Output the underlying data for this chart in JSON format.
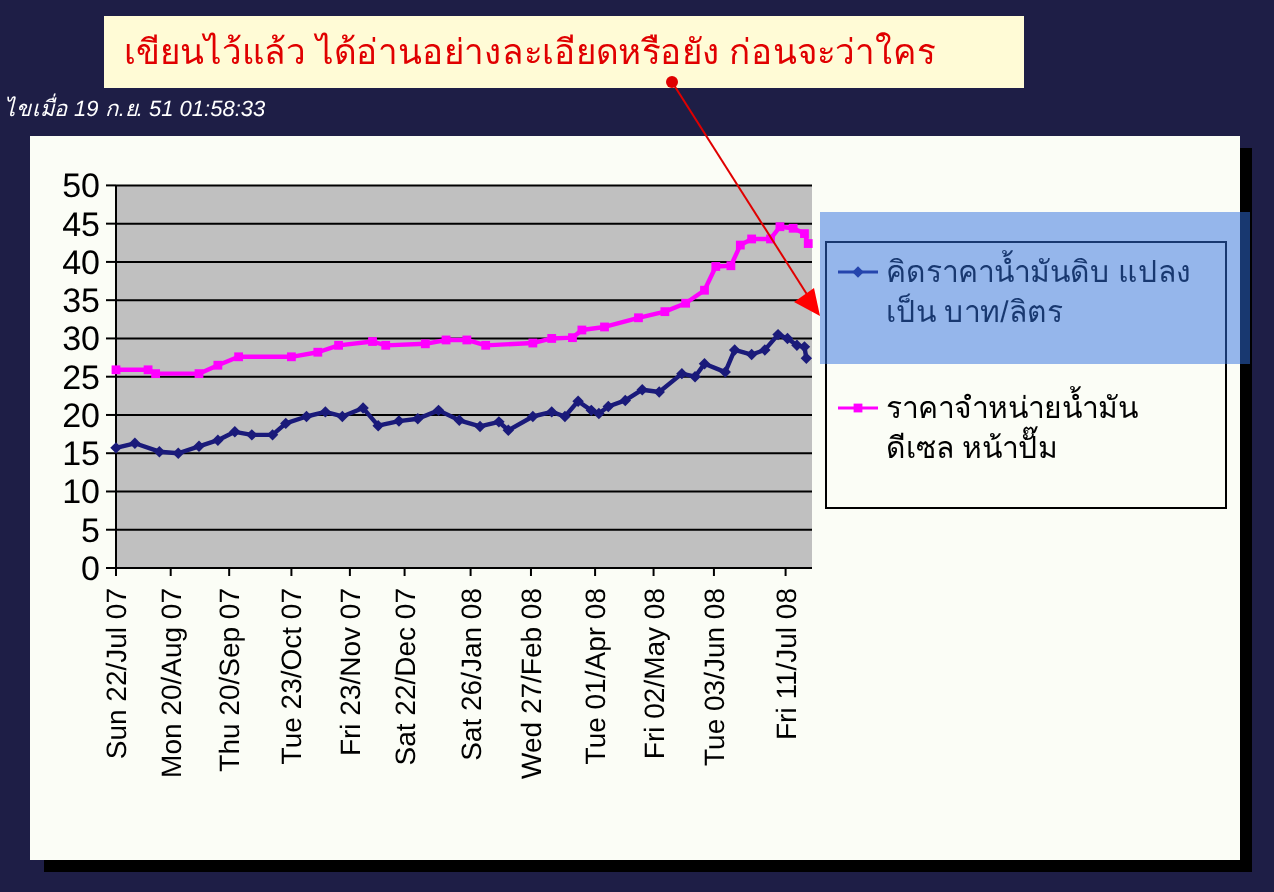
{
  "chart_data": {
    "type": "line",
    "annotations": [
      "เขียนไว้แล้ว ได้อ่านอย่างละเอียดหรือยัง ก่อนจะว่าใคร",
      "ไขเมื่อ 19 ก.ย. 51 01:58:33"
    ],
    "xlim": [
      "2007-07-22",
      "2008-07-25"
    ],
    "xticks": [
      {
        "value": "2007-07-22",
        "label": "Sun 22/Jul 07"
      },
      {
        "value": "2007-08-20",
        "label": "Mon 20/Aug 07"
      },
      {
        "value": "2007-09-20",
        "label": "Thu 20/Sep 07"
      },
      {
        "value": "2007-10-23",
        "label": "Tue 23/Oct 07"
      },
      {
        "value": "2007-11-23",
        "label": "Fri 23/Nov 07"
      },
      {
        "value": "2007-12-22",
        "label": "Sat 22/Dec 07"
      },
      {
        "value": "2008-01-26",
        "label": "Sat 26/Jan 08"
      },
      {
        "value": "2008-02-27",
        "label": "Wed 27/Feb 08"
      },
      {
        "value": "2008-04-01",
        "label": "Tue 01/Apr 08"
      },
      {
        "value": "2008-05-02",
        "label": "Fri 02/May 08"
      },
      {
        "value": "2008-06-03",
        "label": "Tue 03/Jun 08"
      },
      {
        "value": "2008-07-11",
        "label": "Fri 11/Jul 08"
      }
    ],
    "ylim": [
      0,
      50
    ],
    "yticks": [
      0,
      5,
      10,
      15,
      20,
      25,
      30,
      35,
      40,
      45,
      50
    ],
    "grid": "y",
    "legend": "right",
    "series": [
      {
        "name": "คิดราคาน้ำมันดิบ แปลง เป็น บาท/ลิตร",
        "color": "#1a1a7a",
        "marker": "diamond",
        "x": [
          "2007-07-22",
          "2007-08-01",
          "2007-08-14",
          "2007-08-24",
          "2007-09-04",
          "2007-09-14",
          "2007-09-23",
          "2007-10-02",
          "2007-10-13",
          "2007-10-20",
          "2007-10-31",
          "2007-11-10",
          "2007-11-19",
          "2007-11-30",
          "2007-12-08",
          "2007-12-19",
          "2007-12-29",
          "2008-01-09",
          "2008-01-20",
          "2008-01-31",
          "2008-02-10",
          "2008-02-15",
          "2008-02-28",
          "2008-03-09",
          "2008-03-16",
          "2008-03-23",
          "2008-03-30",
          "2008-04-03",
          "2008-04-08",
          "2008-04-17",
          "2008-04-26",
          "2008-05-05",
          "2008-05-17",
          "2008-05-24",
          "2008-05-29",
          "2008-06-09",
          "2008-06-14",
          "2008-06-23",
          "2008-06-30",
          "2008-07-07",
          "2008-07-12",
          "2008-07-17",
          "2008-07-21",
          "2008-07-22"
        ],
        "values": [
          15.7,
          16.3,
          15.2,
          15,
          15.9,
          16.7,
          17.8,
          17.4,
          17.4,
          18.9,
          19.8,
          20.4,
          19.8,
          20.9,
          18.6,
          19.2,
          19.5,
          20.6,
          19.3,
          18.5,
          19.1,
          18,
          19.8,
          20.4,
          19.8,
          21.8,
          20.6,
          20.2,
          21.1,
          21.9,
          23.3,
          23,
          25.4,
          25,
          26.7,
          25.6,
          28.5,
          27.9,
          28.5,
          30.5,
          30,
          29.1,
          28.9,
          27.4
        ]
      },
      {
        "name": "ราคาจำหน่ายน้ำมัน ดีเซล หน้าปั๊ม",
        "color": "#ff00ff",
        "marker": "square",
        "x": [
          "2007-07-22",
          "2007-08-08",
          "2007-08-12",
          "2007-09-04",
          "2007-09-14",
          "2007-09-25",
          "2007-10-23",
          "2007-11-06",
          "2007-11-17",
          "2007-12-05",
          "2007-12-12",
          "2008-01-02",
          "2008-01-13",
          "2008-01-24",
          "2008-02-03",
          "2008-02-28",
          "2008-03-09",
          "2008-03-20",
          "2008-03-25",
          "2008-04-06",
          "2008-04-24",
          "2008-05-08",
          "2008-05-19",
          "2008-05-29",
          "2008-06-04",
          "2008-06-12",
          "2008-06-17",
          "2008-06-23",
          "2008-07-03",
          "2008-07-08",
          "2008-07-15",
          "2008-07-21",
          "2008-07-23"
        ],
        "values": [
          25.9,
          25.9,
          25.4,
          25.4,
          26.5,
          27.6,
          27.6,
          28.2,
          29.1,
          29.6,
          29.1,
          29.3,
          29.8,
          29.8,
          29.1,
          29.4,
          30,
          30.1,
          31.1,
          31.5,
          32.7,
          33.5,
          34.6,
          36.3,
          39.4,
          39.5,
          42.2,
          43,
          43,
          44.6,
          44.4,
          43.7,
          42.4
        ]
      }
    ]
  }
}
